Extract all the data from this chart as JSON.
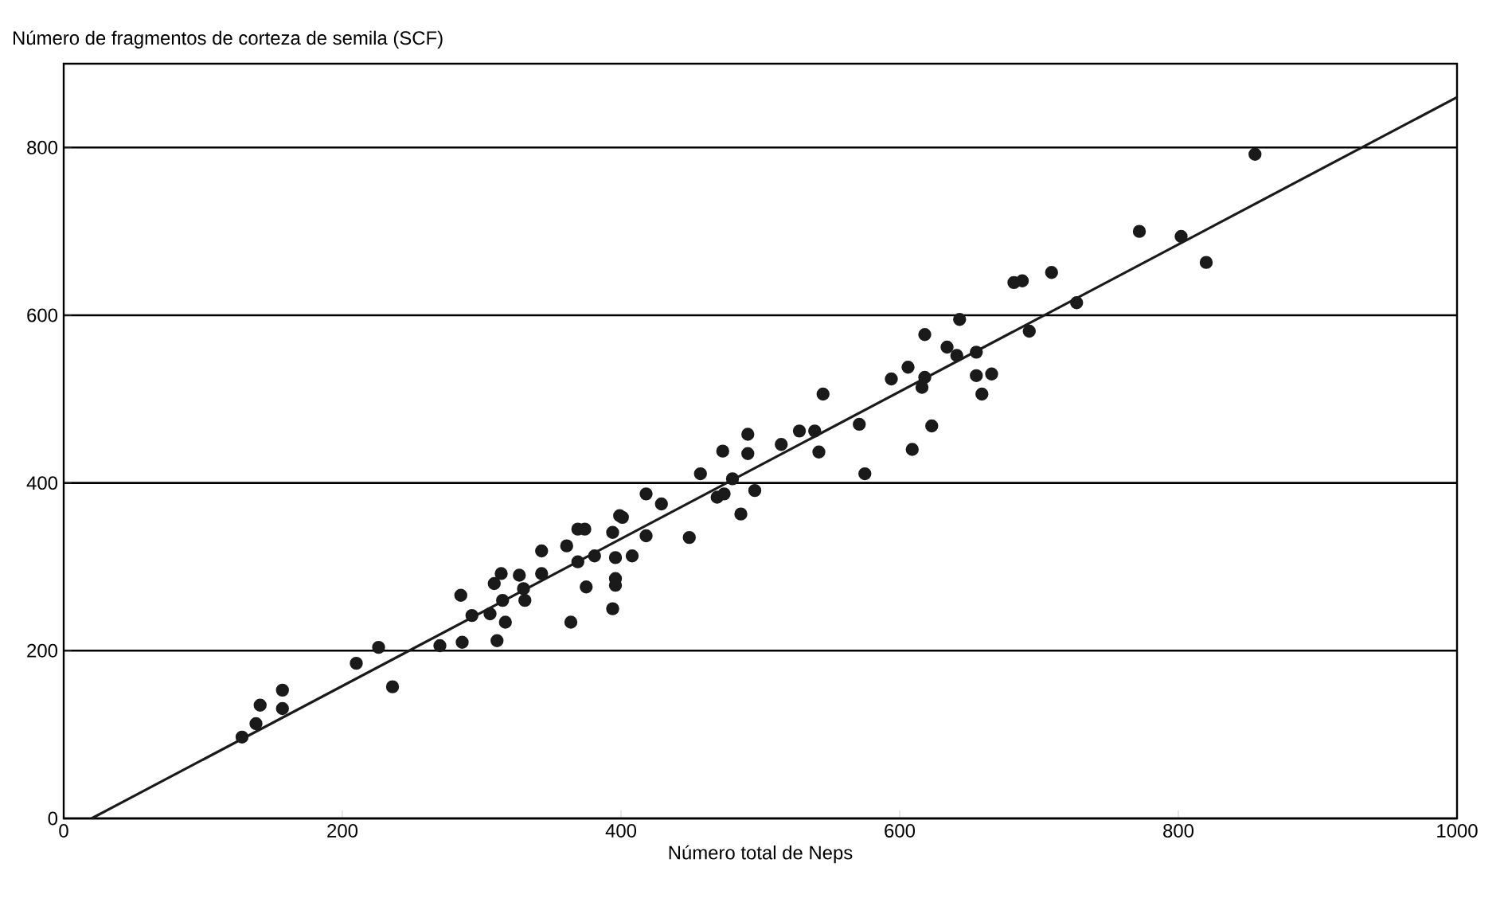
{
  "chart_data": {
    "type": "scatter",
    "ylabel": "Número de fragmentos de corteza de semila (SCF)",
    "xlabel": "Número total de Neps",
    "xlim": [
      0,
      1000
    ],
    "ylim": [
      0,
      900
    ],
    "xticks": [
      0,
      200,
      400,
      600,
      800,
      1000
    ],
    "yticks": [
      0,
      200,
      400,
      600,
      800
    ],
    "grid": "y",
    "series": [
      {
        "color": "#1a1a1a",
        "marker": "circle",
        "x": [
          128,
          138,
          141,
          157,
          157,
          210,
          226,
          236,
          270,
          286,
          285,
          293,
          306,
          311,
          317,
          314,
          309,
          315,
          327,
          330,
          331,
          343,
          343,
          364,
          361,
          369,
          374,
          369,
          375,
          381,
          396,
          408,
          396,
          396,
          394,
          394,
          399,
          401,
          418,
          418,
          429,
          449,
          457,
          473,
          491,
          491,
          469,
          474,
          486,
          496,
          515,
          480,
          528,
          539,
          542,
          545,
          571,
          575,
          594,
          606,
          609,
          616,
          618,
          618,
          623,
          634,
          641,
          643,
          655,
          655,
          659,
          666,
          682,
          688,
          709,
          727,
          693,
          772,
          802,
          820,
          855
        ],
        "values": [
          97,
          113,
          135,
          153,
          131,
          185,
          204,
          157,
          206,
          210,
          266,
          242,
          244,
          212,
          234,
          292,
          280,
          260,
          290,
          274,
          260,
          319,
          292,
          234,
          325,
          345,
          345,
          306,
          276,
          313,
          311,
          313,
          286,
          278,
          250,
          341,
          361,
          359,
          337,
          387,
          375,
          335,
          411,
          438,
          458,
          435,
          383,
          387,
          363,
          391,
          446,
          405,
          462,
          462,
          437,
          506,
          470,
          411,
          524,
          538,
          440,
          514,
          526,
          577,
          468,
          562,
          552,
          595,
          556,
          528,
          506,
          530,
          639,
          641,
          651,
          615,
          581,
          700,
          694,
          663,
          792
        ]
      },
      {
        "type": "line",
        "color": "#1a1a1a",
        "marker": "none",
        "x": [
          20,
          1000
        ],
        "values": [
          0,
          860
        ]
      }
    ]
  }
}
